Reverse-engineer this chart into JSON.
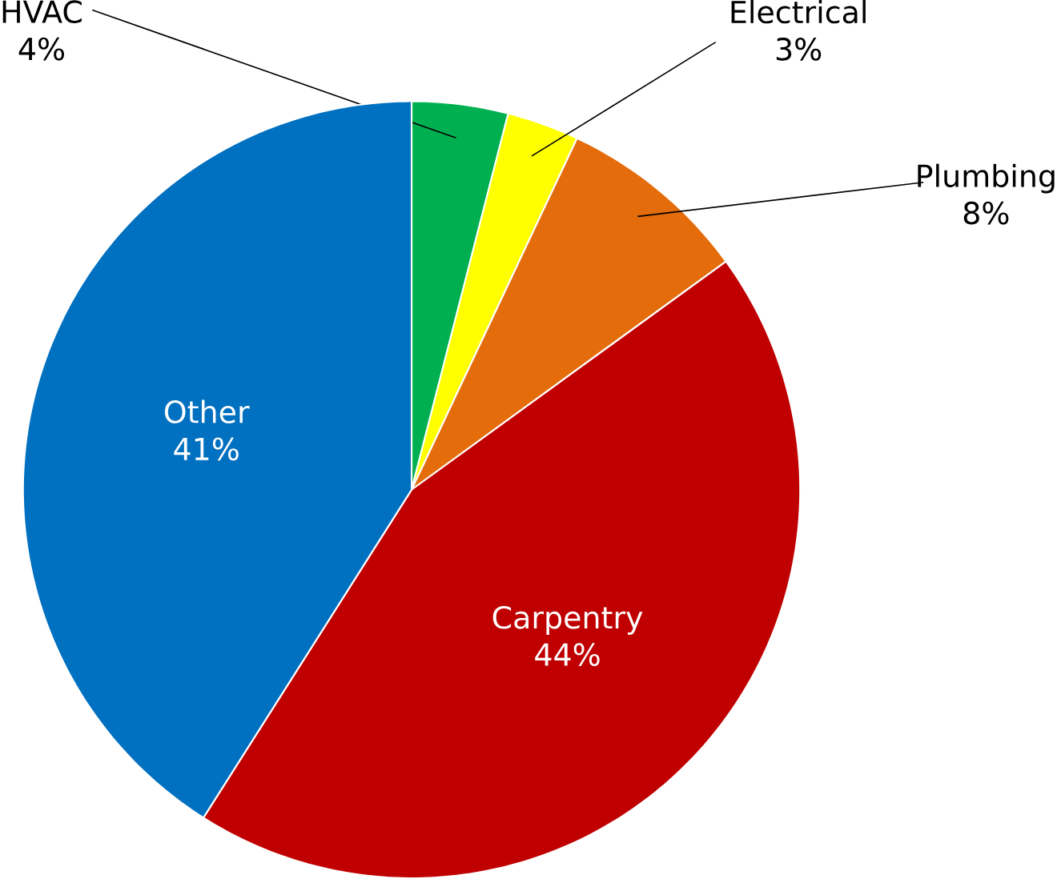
{
  "chart_data": {
    "type": "pie",
    "categories": [
      "HVAC",
      "Electrical",
      "Plumbing",
      "Carpentry",
      "Other"
    ],
    "values": [
      4,
      3,
      8,
      44,
      41
    ],
    "value_labels": [
      "4%",
      "3%",
      "8%",
      "44%",
      "41%"
    ],
    "colors": [
      "#00b050",
      "#ffff00",
      "#e46c0a",
      "#c00000",
      "#0070c0"
    ]
  }
}
